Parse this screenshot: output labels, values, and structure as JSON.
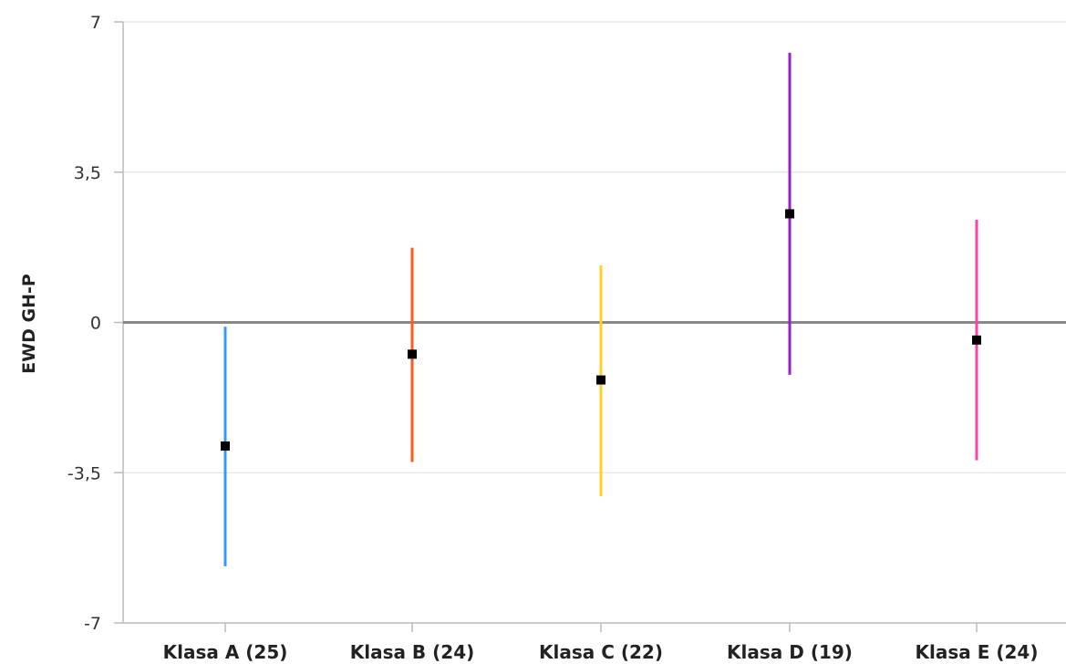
{
  "chart_data": {
    "type": "errorbar",
    "ylabel": "EWD GH-P",
    "xlabel": "",
    "ylim": [
      -7,
      7
    ],
    "yticks": [
      7,
      3.5,
      0,
      -3.5,
      -7
    ],
    "ytick_labels": [
      "7",
      "3,5",
      "0",
      "-3,5",
      "-7"
    ],
    "reference_line": 0,
    "grid": true,
    "categories": [
      "Klasa A (25)",
      "Klasa B (24)",
      "Klasa C (22)",
      "Klasa D (19)",
      "Klasa E (24)"
    ],
    "points": [
      {
        "category": "Klasa A (25)",
        "mean": -2.88,
        "low": -5.68,
        "high": -0.1,
        "color": "#3399ff"
      },
      {
        "category": "Klasa B (24)",
        "mean": -0.74,
        "low": -3.25,
        "high": 1.74,
        "color": "#ff5a1f"
      },
      {
        "category": "Klasa C (22)",
        "mean": -1.34,
        "low": -4.05,
        "high": 1.33,
        "color": "#ffd21f"
      },
      {
        "category": "Klasa D (19)",
        "mean": 2.53,
        "low": -1.22,
        "high": 6.28,
        "color": "#9b1fc8"
      },
      {
        "category": "Klasa E (24)",
        "mean": -0.41,
        "low": -3.21,
        "high": 2.39,
        "color": "#ff3fa6"
      }
    ]
  }
}
